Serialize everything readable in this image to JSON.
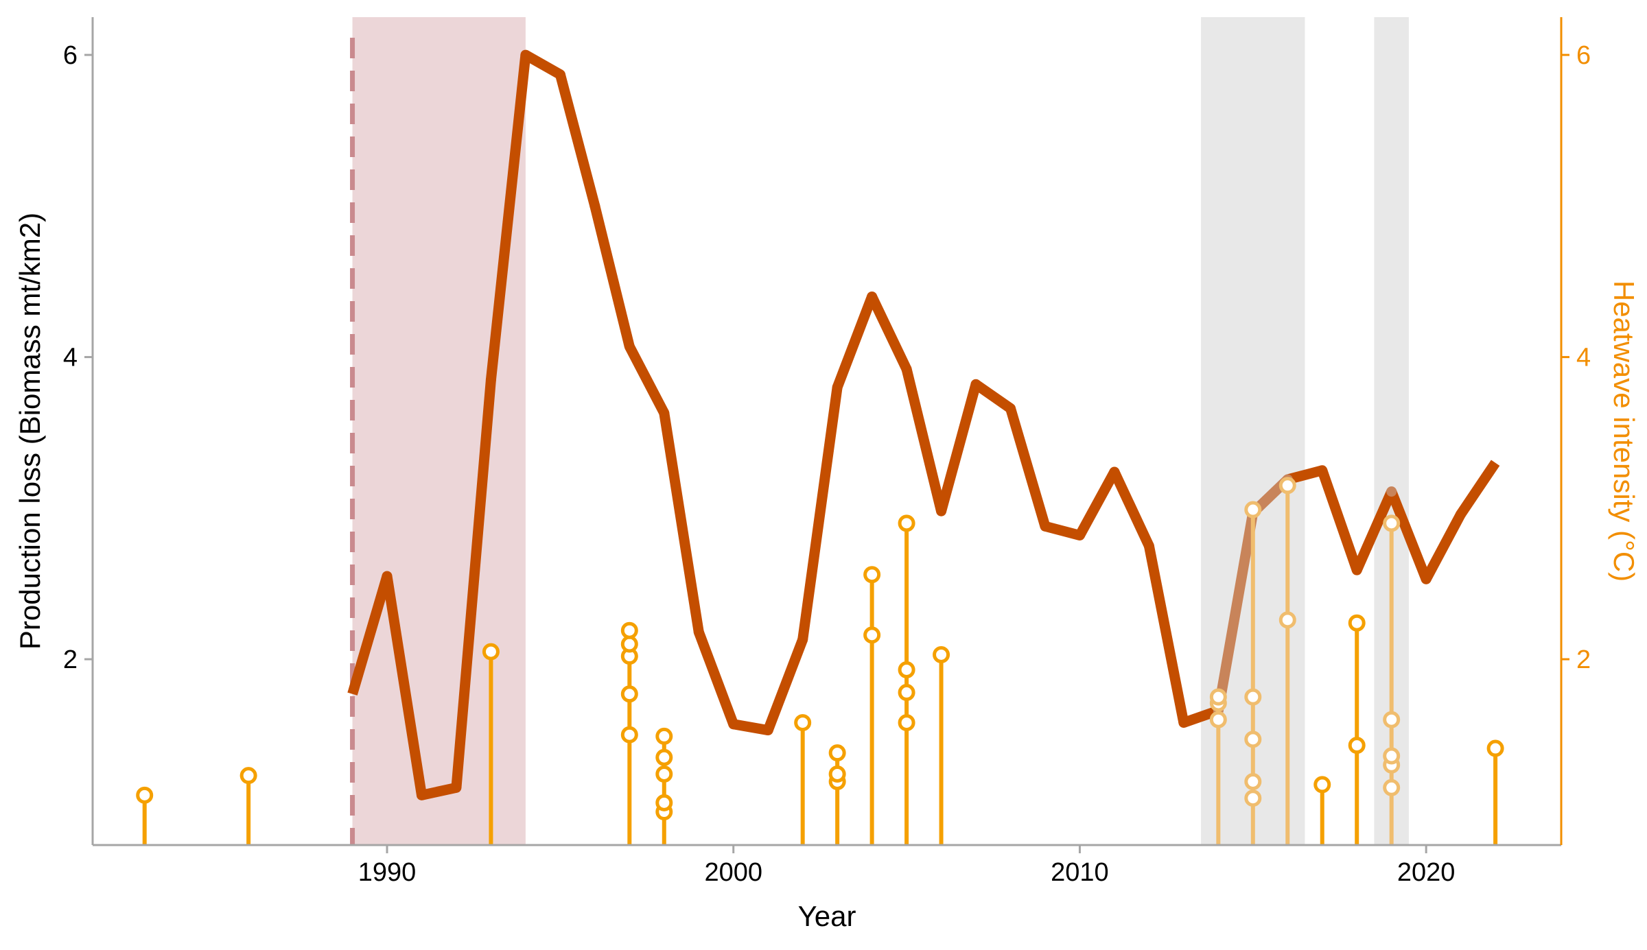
{
  "chart_data": {
    "type": "line",
    "title": "",
    "xlabel": "Year",
    "ylabel": "Production loss (Biomass mt/km2)",
    "y2label": "Heatwave intensity (°C)",
    "xlim": [
      1981.5,
      2023.9
    ],
    "ylim": [
      0.77,
      6.25
    ],
    "y2lim": [
      0.77,
      6.25
    ],
    "x_ticks": [
      1990,
      2000,
      2010,
      2020
    ],
    "y_ticks": [
      2,
      4,
      6
    ],
    "y2_ticks": [
      2,
      4,
      6
    ],
    "grid": false,
    "colors": {
      "axis": "#a6a6a6",
      "left_axis_text": "#000000",
      "right_axis": "#f28e00",
      "production_line": "#c44e00",
      "production_line_faded": "#c8845a",
      "heatwave": "#f5a000",
      "heatwave_faded": "#f0bd6e",
      "marker_fill": "#ffffff",
      "shade_pink": "#ecd6d8",
      "shade_gray": "#e8e8e8",
      "dashed_marker": "#c98a8e"
    },
    "shaded_periods": [
      {
        "start": 1989.0,
        "end": 1994.0,
        "color": "pink"
      },
      {
        "start": 2013.5,
        "end": 2016.5,
        "color": "gray"
      },
      {
        "start": 2018.5,
        "end": 2019.5,
        "color": "gray"
      }
    ],
    "vertical_dashed_line": {
      "x": 1989.0
    },
    "series": [
      {
        "type": "line",
        "axis": "left",
        "x": [
          1989,
          1990,
          1991,
          1992,
          1993,
          1994,
          1995,
          1996,
          1997,
          1998,
          1999,
          2000,
          2001,
          2002,
          2003,
          2004,
          2005,
          2006,
          2007,
          2008,
          2009,
          2010,
          2011,
          2012,
          2013,
          2014,
          2015,
          2016,
          2017,
          2018,
          2019,
          2020,
          2021,
          2022
        ],
        "y": [
          1.77,
          2.55,
          1.1,
          1.15,
          3.85,
          6.0,
          5.87,
          5.0,
          4.07,
          3.63,
          2.18,
          1.57,
          1.53,
          2.13,
          3.8,
          4.4,
          3.92,
          2.98,
          3.82,
          3.66,
          2.88,
          2.82,
          3.24,
          2.75,
          1.58,
          1.66,
          2.97,
          3.19,
          3.25,
          2.59,
          3.11,
          2.53,
          2.96,
          3.3
        ]
      },
      {
        "type": "lollipop",
        "axis": "right",
        "points": [
          {
            "x": 1983,
            "y": [
              1.1
            ]
          },
          {
            "x": 1986,
            "y": [
              1.23
            ]
          },
          {
            "x": 1993,
            "y": [
              2.05
            ]
          },
          {
            "x": 1997,
            "y": [
              1.5,
              1.77,
              2.02,
              2.1,
              2.19
            ]
          },
          {
            "x": 1998,
            "y": [
              0.99,
              1.05,
              1.24,
              1.35,
              1.49
            ]
          },
          {
            "x": 2002,
            "y": [
              1.58
            ]
          },
          {
            "x": 2003,
            "y": [
              1.19,
              1.24,
              1.38
            ]
          },
          {
            "x": 2004,
            "y": [
              2.16,
              2.56
            ]
          },
          {
            "x": 2005,
            "y": [
              1.58,
              1.78,
              1.93,
              2.9
            ]
          },
          {
            "x": 2006,
            "y": [
              2.03
            ]
          },
          {
            "x": 2014,
            "y": [
              1.6,
              1.71,
              1.75
            ]
          },
          {
            "x": 2015,
            "y": [
              1.08,
              1.19,
              1.47,
              1.75,
              2.99
            ]
          },
          {
            "x": 2016,
            "y": [
              2.26,
              3.15
            ]
          },
          {
            "x": 2017,
            "y": [
              1.17
            ]
          },
          {
            "x": 2018,
            "y": [
              1.43,
              2.24
            ]
          },
          {
            "x": 2019,
            "y": [
              1.15,
              1.3,
              1.36,
              1.6,
              2.9
            ]
          },
          {
            "x": 2022,
            "y": [
              1.41
            ]
          }
        ]
      }
    ]
  }
}
